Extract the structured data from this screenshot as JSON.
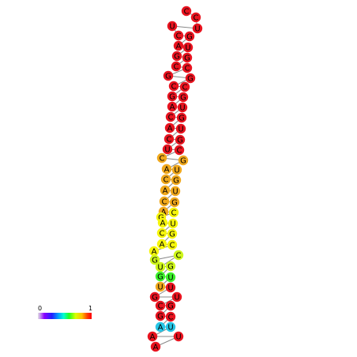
{
  "scale": {
    "min_label": "0",
    "max_label": "1"
  },
  "colors": {
    "red": "#e8131f",
    "orange": "#f0a81c",
    "yellow": "#f5f50c",
    "yellowgreen": "#cdf51a",
    "green": "#3cf02c",
    "cyan": "#27c6e6"
  },
  "nucleotides": [
    {
      "letter": "C",
      "color": "red"
    },
    {
      "letter": "C",
      "color": "red"
    },
    {
      "letter": "U",
      "color": "red"
    },
    {
      "letter": "U",
      "color": "red"
    },
    {
      "letter": "C",
      "color": "red"
    },
    {
      "letter": "G",
      "color": "red"
    },
    {
      "letter": "A",
      "color": "red"
    },
    {
      "letter": "U",
      "color": "red"
    },
    {
      "letter": "G",
      "color": "red"
    },
    {
      "letter": "G",
      "color": "red"
    },
    {
      "letter": "C",
      "color": "red"
    },
    {
      "letter": "C",
      "color": "red"
    },
    {
      "letter": "G",
      "color": "red"
    },
    {
      "letter": "G",
      "color": "red"
    },
    {
      "letter": "C",
      "color": "red"
    },
    {
      "letter": "C",
      "color": "red"
    },
    {
      "letter": "G",
      "color": "red"
    },
    {
      "letter": "G",
      "color": "red"
    },
    {
      "letter": "A",
      "color": "red"
    },
    {
      "letter": "U",
      "color": "red"
    },
    {
      "letter": "C",
      "color": "red"
    },
    {
      "letter": "G",
      "color": "red"
    },
    {
      "letter": "A",
      "color": "red"
    },
    {
      "letter": "U",
      "color": "red"
    },
    {
      "letter": "C",
      "color": "red"
    },
    {
      "letter": "G",
      "color": "red"
    },
    {
      "letter": "U",
      "color": "red"
    },
    {
      "letter": "C",
      "color": "red"
    },
    {
      "letter": "C",
      "color": "orange"
    },
    {
      "letter": "G",
      "color": "orange"
    },
    {
      "letter": "A",
      "color": "orange"
    },
    {
      "letter": "U",
      "color": "orange"
    },
    {
      "letter": "C",
      "color": "orange"
    },
    {
      "letter": "G",
      "color": "orange"
    },
    {
      "letter": "A",
      "color": "orange"
    },
    {
      "letter": "U",
      "color": "orange"
    },
    {
      "letter": "C",
      "color": "orange"
    },
    {
      "letter": "G",
      "color": "orange"
    },
    {
      "letter": "A",
      "color": "orange"
    },
    {
      "letter": "C",
      "color": "yellow"
    },
    {
      "letter": "G",
      "color": "yellow"
    },
    {
      "letter": "A",
      "color": "yellow"
    },
    {
      "letter": "U",
      "color": "yellow"
    },
    {
      "letter": "C",
      "color": "yellow"
    },
    {
      "letter": "G",
      "color": "yellow"
    },
    {
      "letter": "A",
      "color": "yellow"
    },
    {
      "letter": "C",
      "color": "yellow"
    },
    {
      "letter": "A",
      "color": "yellow"
    },
    {
      "letter": "G",
      "color": "yellowgreen"
    },
    {
      "letter": "C",
      "color": "yellowgreen"
    },
    {
      "letter": "U",
      "color": "yellowgreen"
    },
    {
      "letter": "G",
      "color": "yellowgreen"
    },
    {
      "letter": "G",
      "color": "green"
    },
    {
      "letter": "U",
      "color": "green"
    },
    {
      "letter": "U",
      "color": "orange"
    },
    {
      "letter": "U",
      "color": "red"
    },
    {
      "letter": "G",
      "color": "red"
    },
    {
      "letter": "U",
      "color": "red"
    },
    {
      "letter": "C",
      "color": "red"
    },
    {
      "letter": "G",
      "color": "red"
    },
    {
      "letter": "G",
      "color": "red"
    },
    {
      "letter": "C",
      "color": "red"
    },
    {
      "letter": "A",
      "color": "cyan"
    },
    {
      "letter": "U",
      "color": "cyan"
    },
    {
      "letter": "A",
      "color": "red"
    },
    {
      "letter": "U",
      "color": "red"
    },
    {
      "letter": "A",
      "color": "red"
    }
  ]
}
